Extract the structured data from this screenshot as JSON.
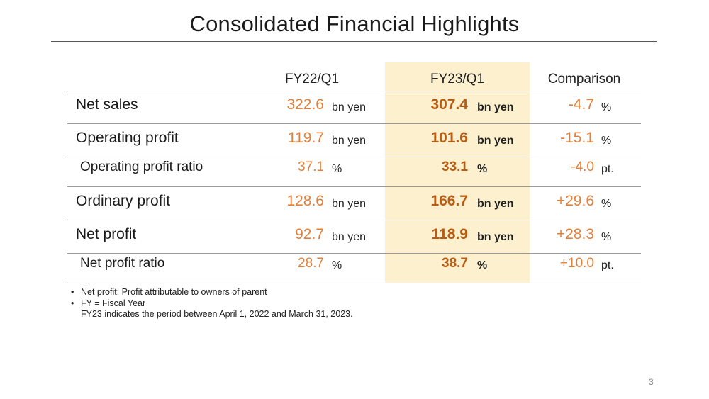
{
  "title": "Consolidated Financial Highlights",
  "columns": {
    "fy22": "FY22/Q1",
    "fy23": "FY23/Q1",
    "comparison": "Comparison"
  },
  "rows": [
    {
      "label": "Net sales",
      "fy22_value": "322.6",
      "fy22_unit": "bn yen",
      "fy23_value": "307.4",
      "fy23_unit": "bn yen",
      "cmp_value": "-4.7",
      "cmp_unit": "%"
    },
    {
      "label": "Operating profit",
      "fy22_value": "119.7",
      "fy22_unit": "bn yen",
      "fy23_value": "101.6",
      "fy23_unit": "bn yen",
      "cmp_value": "-15.1",
      "cmp_unit": "%"
    },
    {
      "label": "Operating profit ratio",
      "fy22_value": "37.1",
      "fy22_unit": "%",
      "fy23_value": "33.1",
      "fy23_unit": "%",
      "cmp_value": "-4.0",
      "cmp_unit": "pt."
    },
    {
      "label": "Ordinary profit",
      "fy22_value": "128.6",
      "fy22_unit": "bn yen",
      "fy23_value": "166.7",
      "fy23_unit": "bn yen",
      "cmp_value": "+29.6",
      "cmp_unit": "%"
    },
    {
      "label": "Net profit",
      "fy22_value": "92.7",
      "fy22_unit": "bn yen",
      "fy23_value": "118.9",
      "fy23_unit": "bn yen",
      "cmp_value": "+28.3",
      "cmp_unit": "%"
    },
    {
      "label": "Net profit ratio",
      "fy22_value": "28.7",
      "fy22_unit": "%",
      "fy23_value": "38.7",
      "fy23_unit": "%",
      "cmp_value": "+10.0",
      "cmp_unit": "pt."
    }
  ],
  "notes": {
    "bullet": "•",
    "note1": "Net profit: Profit attributable to owners of parent",
    "note2": "FY = Fiscal Year",
    "note3": "FY23 indicates the period between April 1, 2022 and March 31, 2023."
  },
  "page_number": "3",
  "colors": {
    "highlight": "#fdf0cf",
    "fy22_value": "#e07f3a",
    "fy23_value": "#b85c14",
    "comparison_value": "#e07f3a"
  }
}
